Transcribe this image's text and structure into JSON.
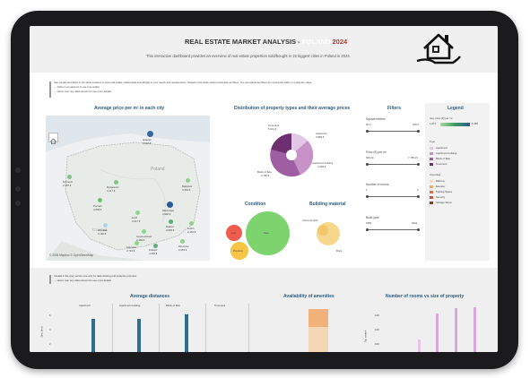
{
  "header": {
    "title_prefix": "REAL ESTATE MARKET ANALYSIS - ",
    "title_country": "POLAND",
    "title_year": "2024",
    "subtitle": "This interactive dashboard provides an overview of real estate properties sold/bought in 15 biggest cities in Poland in 2024."
  },
  "instructions": {
    "line1": "Use visuals and filters in the white sections to view real estate market data accordingly to your needs and requirements. Visuals in the white section work also as filters. You can adjust the filters by moving the slider or typing the value.",
    "line2": "→ Click on an element to use it as a filter",
    "line3": "→ Hover over any data element to see more details"
  },
  "map": {
    "title": "Average price per m² in each city",
    "country_label": "Poland",
    "neighbor_label": "Czechia",
    "attribution": "© 2025 Mapbox © OpenStreetMap",
    "cities": [
      {
        "name": "Gdańsk",
        "value": "5,916 €",
        "color": "#3a67a0"
      },
      {
        "name": "Szczecin",
        "value": "2,287 €",
        "color": "#7ec780"
      },
      {
        "name": "Bydgoszcz",
        "value": "3,417 €",
        "color": "#7ec780"
      },
      {
        "name": "Białystok",
        "value": "3,363 €",
        "color": "#8fd48c"
      },
      {
        "name": "Poznań",
        "value": "3,868 €",
        "color": "#6fbf74"
      },
      {
        "name": "Warszawa",
        "value": "4,966 €",
        "color": "#2d5a91"
      },
      {
        "name": "Łódź",
        "value": "3,017 €",
        "color": "#8fd48c"
      },
      {
        "name": "Radom",
        "value": "3,805 €",
        "color": "#5fae78"
      },
      {
        "name": "Lublin",
        "value": "2,463 €",
        "color": "#8fd48c"
      },
      {
        "name": "Wrocław",
        "value": "3,152 €",
        "color": "#a9d7e8"
      },
      {
        "name": "Częstochowa",
        "value": "2,480 €",
        "color": "#8fd48c"
      },
      {
        "name": "Katowice",
        "value": "2,718 €",
        "color": "#8fd48c"
      },
      {
        "name": "Kraków",
        "value": "4,062 €",
        "color": "#5fae78"
      },
      {
        "name": "Rzeszów",
        "value": "2,453 €",
        "color": "#8fd48c"
      }
    ]
  },
  "pie": {
    "title": "Distribution of property types and their average prices",
    "slices": [
      {
        "name": "Tenement",
        "value": "5,441 €"
      },
      {
        "name": "Apartment",
        "value": "3,883 €"
      },
      {
        "name": "Apartment building",
        "value": "4,328 €"
      },
      {
        "name": "Block of flats",
        "value": "3,760 €"
      }
    ]
  },
  "condition": {
    "title": "Condition",
    "labels": [
      "Low",
      "New",
      "Premium"
    ]
  },
  "material": {
    "title": "Building material",
    "labels": [
      "Concrete slab",
      "Brick"
    ]
  },
  "filters": {
    "title": "Filters",
    "items": [
      {
        "label": "Square meters",
        "min": "25.0",
        "max": "150.0"
      },
      {
        "label": "Price (€) per m²",
        "min": "520.20",
        "max": "7,785.23"
      },
      {
        "label": "Number of rooms",
        "min": "1",
        "max": "6"
      },
      {
        "label": "Build year",
        "min": "1850",
        "max": "2024"
      }
    ]
  },
  "legend": {
    "title": "Legend",
    "gradient_label": "Avg. price (€) per m²",
    "gradient_min": "1,872",
    "gradient_max": "6,356",
    "type_title": "Type",
    "types": [
      {
        "name": "Apartment",
        "color": "#e3c7e6"
      },
      {
        "name": "Apartment building",
        "color": "#c792c8"
      },
      {
        "name": "Block of flats",
        "color": "#9e5ea1"
      },
      {
        "name": "Tenement",
        "color": "#6d2f70"
      }
    ],
    "amen_title": "Amenities",
    "amenities": [
      {
        "name": "Balcony",
        "color": "#f7d8b8"
      },
      {
        "name": "Elevator",
        "color": "#eeaa66"
      },
      {
        "name": "Parking Space",
        "color": "#e06f46"
      },
      {
        "name": "Security",
        "color": "#c2553a"
      },
      {
        "name": "Storage Room",
        "color": "#8e3a2a"
      }
    ]
  },
  "lower_note": {
    "line1": "Visuals in the grey section are only for data viewing and analysis purposes.",
    "line2": "→ Hover over any data element to see more details"
  },
  "avg_distances": {
    "title": "Average distances",
    "columns": [
      "Apartment",
      "Apartment building",
      "Block of flats",
      "Tenement"
    ],
    "ylabel": "Dist. (km)",
    "ticks": [
      "6",
      "4",
      "2"
    ]
  },
  "amenities_chart": {
    "title": "Availability of amenities"
  },
  "rooms_chart": {
    "title": "Number of rooms vs size of property",
    "ylabel": "Sq. meters",
    "ticks": [
      "140",
      "120",
      "100"
    ]
  }
}
